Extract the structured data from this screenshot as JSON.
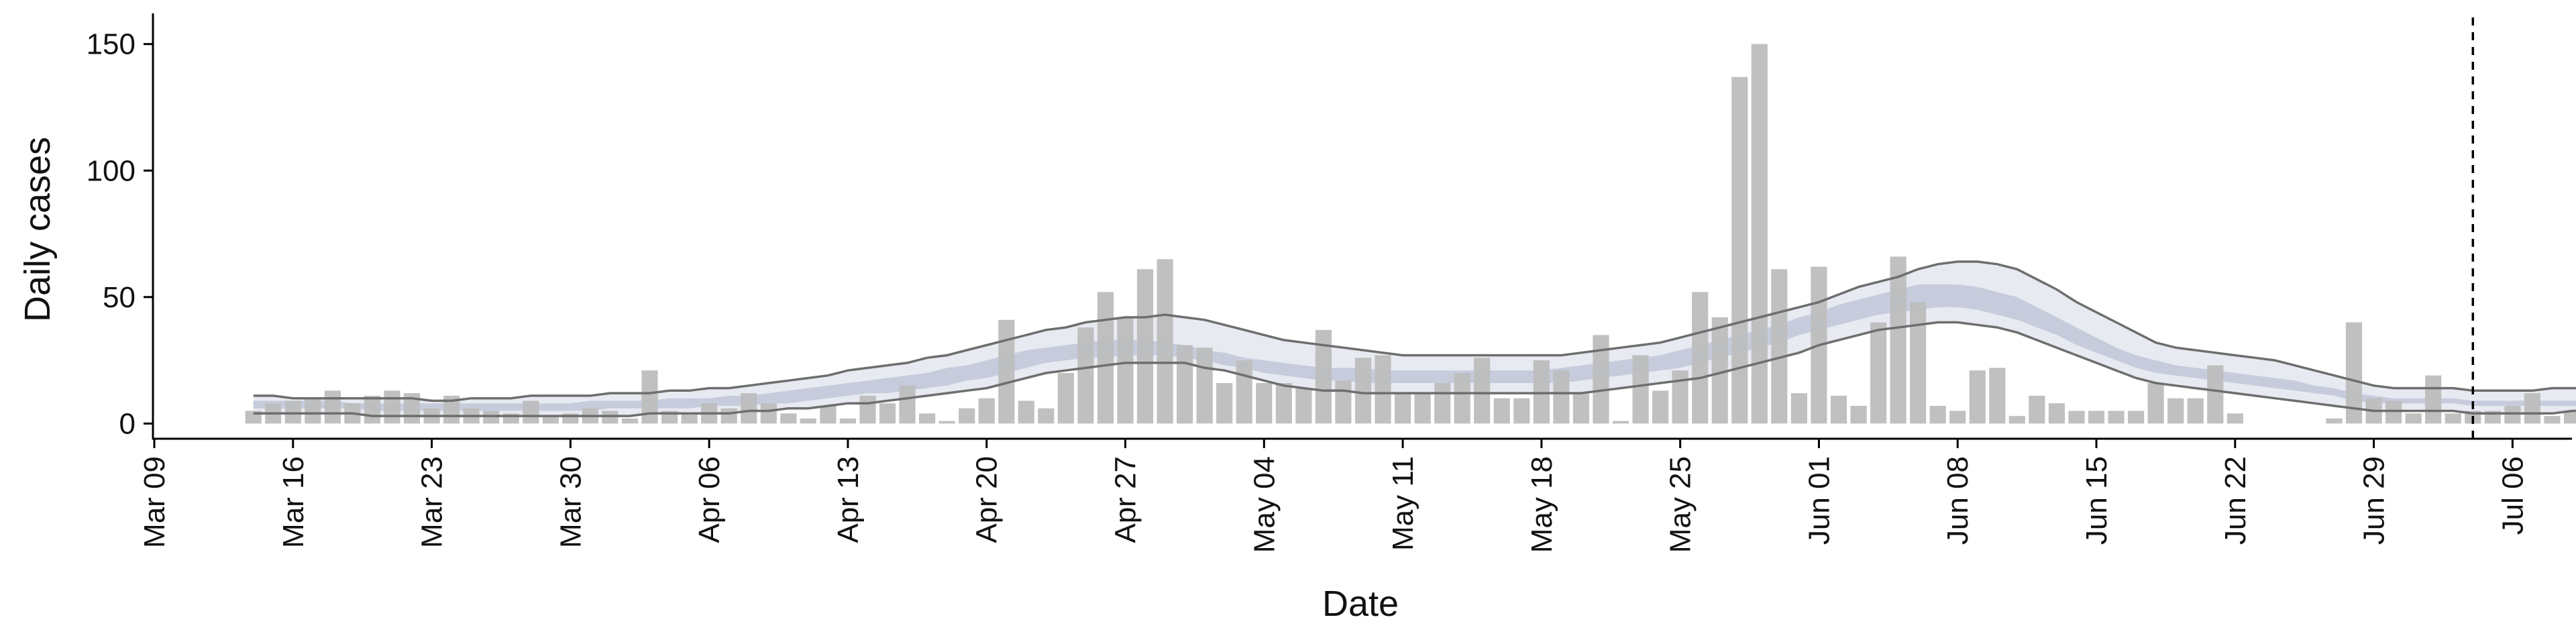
{
  "chart_data": {
    "type": "bar",
    "xlabel": "Date",
    "ylabel": "Daily cases",
    "title": "",
    "ylim": [
      -6,
      160
    ],
    "xlim": [
      "2020-03-09",
      "2020-07-09"
    ],
    "grid": false,
    "legend": "none",
    "x_ticks": [
      "Mar 09",
      "Mar 16",
      "Mar 23",
      "Mar 30",
      "Apr 06",
      "Apr 13",
      "Apr 20",
      "Apr 27",
      "May 04",
      "May 11",
      "May 18",
      "May 25",
      "Jun 01",
      "Jun 08",
      "Jun 15",
      "Jun 22",
      "Jun 29",
      "Jul 06"
    ],
    "y_ticks": [
      "0",
      "50",
      "100",
      "150"
    ],
    "vline_date": "2020-07-04",
    "start_date": "2020-03-14",
    "daily_cases": [
      5,
      8,
      9,
      10,
      13,
      8,
      11,
      13,
      12,
      6,
      11,
      6,
      5,
      4,
      9,
      3,
      4,
      6,
      5,
      2,
      21,
      5,
      4,
      8,
      6,
      12,
      8,
      4,
      2,
      7,
      2,
      11,
      8,
      15,
      4,
      1,
      6,
      10,
      41,
      9,
      6,
      20,
      38,
      52,
      42,
      61,
      65,
      31,
      30,
      16,
      25,
      16,
      16,
      14,
      37,
      17,
      26,
      27,
      12,
      12,
      16,
      20,
      26,
      10,
      10,
      25,
      21,
      12,
      35,
      1,
      27,
      13,
      21,
      52,
      42,
      137,
      150,
      61,
      12,
      62,
      11,
      7,
      40,
      66,
      48,
      7,
      5,
      21,
      22,
      3,
      11,
      8,
      5,
      5,
      5,
      5,
      16,
      10,
      10,
      23,
      4,
      0,
      0,
      0,
      0,
      2,
      40,
      10,
      9,
      4,
      19,
      4,
      5,
      5,
      7,
      12,
      3,
      5
    ],
    "series": [
      {
        "name": "",
        "kind": "outer_bound_upper",
        "values": [
          11,
          11,
          10,
          10,
          10,
          10,
          10,
          10,
          10,
          9,
          9,
          10,
          10,
          10,
          11,
          11,
          11,
          11,
          12,
          12,
          12,
          13,
          13,
          14,
          14,
          15,
          16,
          17,
          18,
          19,
          21,
          22,
          23,
          24,
          26,
          27,
          29,
          31,
          33,
          35,
          37,
          38,
          40,
          41,
          42,
          42,
          43,
          42,
          41,
          39,
          37,
          35,
          33,
          32,
          31,
          30,
          29,
          28,
          27,
          27,
          27,
          27,
          27,
          27,
          27,
          27,
          27,
          28,
          29,
          30,
          31,
          32,
          34,
          36,
          38,
          40,
          42,
          44,
          46,
          48,
          51,
          54,
          56,
          58,
          61,
          63,
          64,
          64,
          63,
          61,
          57,
          53,
          48,
          44,
          40,
          36,
          32,
          30,
          29,
          28,
          27,
          26,
          25,
          23,
          21,
          19,
          17,
          15,
          14,
          14,
          14,
          14,
          13,
          13,
          13,
          13,
          14,
          14,
          14,
          14,
          14,
          14,
          14,
          14,
          14,
          14,
          14,
          14,
          14,
          14,
          14,
          14,
          14,
          14,
          14,
          14,
          14,
          14,
          14,
          14,
          14,
          14,
          14,
          14,
          14,
          14,
          14,
          14
        ]
      },
      {
        "name": "",
        "kind": "outer_bound_lower",
        "values": [
          4,
          4,
          4,
          4,
          4,
          4,
          3,
          3,
          3,
          3,
          3,
          3,
          3,
          3,
          3,
          3,
          3,
          3,
          3,
          3,
          4,
          4,
          4,
          4,
          4,
          5,
          5,
          6,
          6,
          7,
          8,
          8,
          9,
          10,
          11,
          12,
          13,
          14,
          16,
          18,
          20,
          21,
          22,
          23,
          24,
          24,
          24,
          24,
          22,
          21,
          19,
          17,
          15,
          14,
          13,
          13,
          12,
          12,
          12,
          12,
          12,
          12,
          12,
          12,
          12,
          12,
          12,
          12,
          13,
          14,
          15,
          16,
          17,
          18,
          20,
          22,
          24,
          26,
          28,
          31,
          33,
          35,
          37,
          38,
          39,
          40,
          40,
          39,
          38,
          36,
          33,
          30,
          27,
          24,
          21,
          18,
          16,
          15,
          14,
          13,
          12,
          11,
          10,
          9,
          8,
          7,
          6,
          5,
          5,
          5,
          5,
          5,
          4,
          4,
          4,
          4,
          4,
          5,
          5,
          5,
          5,
          5,
          5,
          5,
          5,
          5,
          5,
          5,
          5,
          5,
          5,
          5,
          5,
          5,
          5,
          5,
          5,
          5,
          5,
          5,
          5,
          5,
          5,
          5,
          5,
          5,
          5,
          5
        ]
      },
      {
        "name": "",
        "kind": "inner_band_upper",
        "values": [
          9,
          9,
          9,
          9,
          9,
          8,
          8,
          8,
          8,
          8,
          8,
          8,
          8,
          8,
          8,
          8,
          8,
          9,
          9,
          9,
          9,
          10,
          10,
          10,
          11,
          11,
          12,
          13,
          14,
          15,
          16,
          17,
          18,
          19,
          20,
          22,
          23,
          25,
          27,
          29,
          30,
          31,
          32,
          33,
          33,
          33,
          32,
          31,
          29,
          28,
          26,
          25,
          24,
          23,
          22,
          22,
          22,
          21,
          21,
          21,
          21,
          21,
          21,
          21,
          21,
          21,
          22,
          23,
          24,
          25,
          26,
          27,
          29,
          31,
          33,
          35,
          37,
          39,
          42,
          44,
          47,
          49,
          51,
          53,
          55,
          55,
          55,
          54,
          52,
          50,
          46,
          42,
          38,
          34,
          30,
          27,
          25,
          23,
          22,
          21,
          20,
          19,
          18,
          17,
          15,
          14,
          12,
          11,
          10,
          10,
          10,
          10,
          9,
          9,
          9,
          9,
          9,
          9,
          9,
          9,
          9,
          9,
          9,
          9,
          9,
          9,
          9,
          9,
          9,
          9,
          9,
          9,
          9,
          9,
          9,
          9,
          9,
          9,
          9,
          9,
          9,
          9,
          9,
          9,
          9,
          9,
          9,
          9
        ]
      },
      {
        "name": "",
        "kind": "inner_band_lower",
        "values": [
          6,
          6,
          6,
          6,
          6,
          6,
          5,
          5,
          5,
          5,
          5,
          5,
          5,
          5,
          5,
          5,
          5,
          5,
          6,
          6,
          6,
          6,
          6,
          7,
          7,
          7,
          8,
          8,
          9,
          10,
          11,
          12,
          12,
          13,
          14,
          15,
          17,
          18,
          20,
          22,
          24,
          25,
          26,
          26,
          27,
          27,
          27,
          26,
          25,
          23,
          22,
          20,
          19,
          18,
          17,
          17,
          16,
          16,
          16,
          16,
          16,
          16,
          16,
          16,
          16,
          16,
          16,
          17,
          18,
          19,
          20,
          21,
          22,
          24,
          26,
          28,
          30,
          32,
          35,
          37,
          39,
          41,
          43,
          44,
          45,
          46,
          46,
          45,
          43,
          41,
          38,
          35,
          31,
          28,
          25,
          22,
          20,
          19,
          18,
          17,
          16,
          15,
          14,
          13,
          12,
          11,
          9,
          8,
          8,
          8,
          8,
          8,
          7,
          7,
          7,
          7,
          7,
          7,
          7,
          7,
          7,
          7,
          7,
          7,
          7,
          7,
          7,
          7,
          7,
          7,
          7,
          7,
          7,
          7,
          7,
          7,
          7,
          7,
          7,
          7,
          7,
          7,
          7,
          7,
          7,
          7,
          7,
          7
        ]
      }
    ],
    "colors": {
      "bars": "#bdbdbd",
      "outer_band": "#e6e8f0",
      "inner_band": "#c3c9da",
      "bound_line": "#6e6e6e",
      "axis": "#000000"
    }
  }
}
